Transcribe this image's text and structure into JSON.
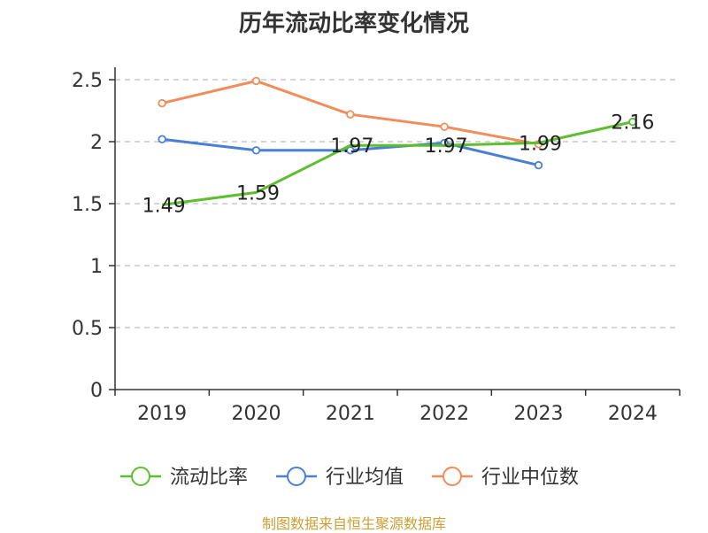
{
  "page": {
    "source": "制图数据来自恒生聚源数据库"
  },
  "chart_data": {
    "type": "line",
    "title": "历年流动比率变化情况",
    "categories": [
      "2019",
      "2020",
      "2021",
      "2022",
      "2023",
      "2024"
    ],
    "ylim": [
      0,
      2.5
    ],
    "yticks": [
      "0",
      "0.5",
      "1",
      "1.5",
      "2",
      "2.5"
    ],
    "grid": true,
    "legend_position": "bottom",
    "series": [
      {
        "name": "流动比率",
        "color": "#5dbf2e",
        "values": [
          1.49,
          1.59,
          1.97,
          1.97,
          1.99,
          2.16
        ],
        "labels": [
          "1.49",
          "1.59",
          "1.97",
          "1.97",
          "1.99",
          "2.16"
        ]
      },
      {
        "name": "行业均值",
        "color": "#4a7fd6",
        "values": [
          2.02,
          1.93,
          1.93,
          1.99,
          1.81,
          null
        ]
      },
      {
        "name": "行业中位数",
        "color": "#f28c5a",
        "values": [
          2.31,
          2.49,
          2.22,
          2.12,
          1.98,
          null
        ]
      }
    ]
  }
}
